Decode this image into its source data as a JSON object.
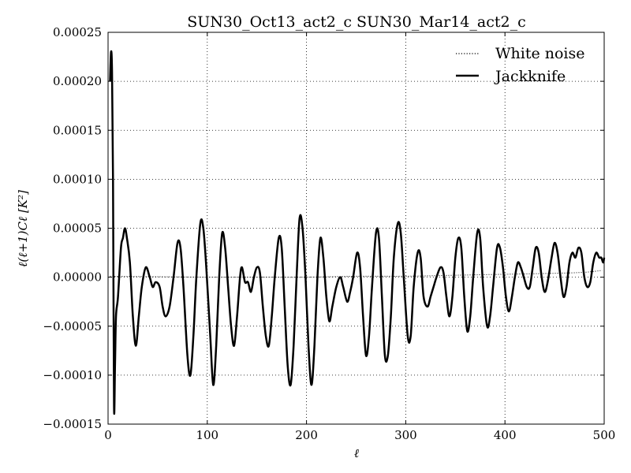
{
  "chart_data": {
    "type": "line",
    "title": "SUN30_Oct13_act2_c SUN30_Mar14_act2_c",
    "xlabel": "ℓ",
    "ylabel": "ℓ(ℓ+1)Cℓ [K²]",
    "xlim": [
      0,
      500
    ],
    "ylim": [
      -0.00015,
      0.00025
    ],
    "xticks": [
      0,
      100,
      200,
      300,
      400,
      500
    ],
    "xtick_labels": [
      "0",
      "100",
      "200",
      "300",
      "400",
      "500"
    ],
    "yticks": [
      -0.00015,
      -0.0001,
      -5e-05,
      0.0,
      5e-05,
      0.0001,
      0.00015,
      0.0002,
      0.00025
    ],
    "ytick_labels": [
      "−0.00015",
      "−0.00010",
      "−0.00005",
      "0.00000",
      "0.00005",
      "0.00010",
      "0.00015",
      "0.00020",
      "0.00025"
    ],
    "grid": true,
    "legend_position": "top-right",
    "series": [
      {
        "name": "White noise",
        "style": "dotted",
        "color": "#000000",
        "points": [
          [
            2,
            1e-06
          ],
          [
            50,
            5e-07
          ],
          [
            100,
            0.0
          ],
          [
            150,
            0.0
          ],
          [
            200,
            0.0
          ],
          [
            250,
            1e-06
          ],
          [
            300,
            1e-06
          ],
          [
            350,
            2e-06
          ],
          [
            400,
            3e-06
          ],
          [
            450,
            4e-06
          ],
          [
            480,
            5e-06
          ],
          [
            498,
            7e-06
          ]
        ]
      },
      {
        "name": "Jackknife",
        "style": "solid",
        "color": "#000000",
        "points": [
          [
            2,
            0.0002
          ],
          [
            3,
            0.00023
          ],
          [
            4,
            0.00021
          ],
          [
            5,
            0.0001
          ],
          [
            6,
            -0.00013
          ],
          [
            7,
            -9e-05
          ],
          [
            8,
            -4e-05
          ],
          [
            10,
            -2e-05
          ],
          [
            13,
            3e-05
          ],
          [
            15,
            4e-05
          ],
          [
            17,
            5e-05
          ],
          [
            19,
            4e-05
          ],
          [
            22,
            1.5e-05
          ],
          [
            25,
            -4e-05
          ],
          [
            28,
            -7e-05
          ],
          [
            31,
            -4e-05
          ],
          [
            34,
            -1e-05
          ],
          [
            38,
            1e-05
          ],
          [
            42,
            0.0
          ],
          [
            45,
            -1e-05
          ],
          [
            48,
            -5e-06
          ],
          [
            52,
            -1e-05
          ],
          [
            55,
            -3e-05
          ],
          [
            58,
            -4e-05
          ],
          [
            62,
            -3e-05
          ],
          [
            66,
            0.0
          ],
          [
            70,
            3.5e-05
          ],
          [
            73,
            3e-05
          ],
          [
            76,
            -1e-05
          ],
          [
            80,
            -8e-05
          ],
          [
            83,
            -0.0001
          ],
          [
            86,
            -6e-05
          ],
          [
            89,
            0.0
          ],
          [
            93,
            5.5e-05
          ],
          [
            96,
            5e-05
          ],
          [
            99,
            1e-05
          ],
          [
            103,
            -6e-05
          ],
          [
            106,
            -0.00011
          ],
          [
            109,
            -7e-05
          ],
          [
            112,
            0.0
          ],
          [
            115,
            4.5e-05
          ],
          [
            118,
            3e-05
          ],
          [
            121,
            -1e-05
          ],
          [
            124,
            -5e-05
          ],
          [
            127,
            -7e-05
          ],
          [
            130,
            -4e-05
          ],
          [
            133,
            0.0
          ],
          [
            135,
            1e-05
          ],
          [
            138,
            -5e-06
          ],
          [
            141,
            -5e-06
          ],
          [
            144,
            -1.5e-05
          ],
          [
            147,
            0.0
          ],
          [
            150,
            1e-05
          ],
          [
            153,
            5e-06
          ],
          [
            156,
            -3e-05
          ],
          [
            159,
            -6e-05
          ],
          [
            162,
            -7e-05
          ],
          [
            165,
            -4e-05
          ],
          [
            168,
            0.0
          ],
          [
            172,
            4e-05
          ],
          [
            175,
            3e-05
          ],
          [
            178,
            -3e-05
          ],
          [
            181,
            -9e-05
          ],
          [
            184,
            -0.00011
          ],
          [
            187,
            -7e-05
          ],
          [
            190,
            0.0
          ],
          [
            193,
            6e-05
          ],
          [
            196,
            5e-05
          ],
          [
            199,
            0.0
          ],
          [
            202,
            -7e-05
          ],
          [
            205,
            -0.00011
          ],
          [
            208,
            -7e-05
          ],
          [
            211,
            0.0
          ],
          [
            214,
            4e-05
          ],
          [
            217,
            2e-05
          ],
          [
            220,
            -2e-05
          ],
          [
            223,
            -4.5e-05
          ],
          [
            226,
            -3e-05
          ],
          [
            230,
            -1e-05
          ],
          [
            234,
            0.0
          ],
          [
            237,
            -1e-05
          ],
          [
            241,
            -2.5e-05
          ],
          [
            244,
            -1.5e-05
          ],
          [
            247,
            0.0
          ],
          [
            251,
            2.5e-05
          ],
          [
            254,
            1e-05
          ],
          [
            257,
            -4e-05
          ],
          [
            260,
            -8e-05
          ],
          [
            263,
            -6e-05
          ],
          [
            266,
            -1e-05
          ],
          [
            270,
            4.5e-05
          ],
          [
            273,
            4e-05
          ],
          [
            276,
            -2e-05
          ],
          [
            279,
            -8e-05
          ],
          [
            282,
            -8e-05
          ],
          [
            285,
            -4e-05
          ],
          [
            288,
            2e-05
          ],
          [
            292,
            5.5e-05
          ],
          [
            295,
            4.5e-05
          ],
          [
            298,
            0.0
          ],
          [
            302,
            -6e-05
          ],
          [
            305,
            -6e-05
          ],
          [
            308,
            -1e-05
          ],
          [
            312,
            2.5e-05
          ],
          [
            315,
            2e-05
          ],
          [
            318,
            -2e-05
          ],
          [
            322,
            -3e-05
          ],
          [
            325,
            -2e-05
          ],
          [
            328,
            -1e-05
          ],
          [
            331,
            0.0
          ],
          [
            335,
            1e-05
          ],
          [
            338,
            5e-06
          ],
          [
            341,
            -2e-05
          ],
          [
            344,
            -4e-05
          ],
          [
            347,
            -2e-05
          ],
          [
            350,
            2e-05
          ],
          [
            353,
            4e-05
          ],
          [
            356,
            3e-05
          ],
          [
            359,
            -2e-05
          ],
          [
            362,
            -5.5e-05
          ],
          [
            365,
            -4e-05
          ],
          [
            368,
            0.0
          ],
          [
            372,
            4.5e-05
          ],
          [
            375,
            4e-05
          ],
          [
            378,
            -1e-05
          ],
          [
            382,
            -5e-05
          ],
          [
            385,
            -4e-05
          ],
          [
            388,
            -1e-05
          ],
          [
            392,
            3e-05
          ],
          [
            395,
            3e-05
          ],
          [
            398,
            1e-05
          ],
          [
            401,
            -2e-05
          ],
          [
            404,
            -3.5e-05
          ],
          [
            407,
            -2e-05
          ],
          [
            410,
            0.0
          ],
          [
            413,
            1.5e-05
          ],
          [
            416,
            1e-05
          ],
          [
            419,
            0.0
          ],
          [
            422,
            -1e-05
          ],
          [
            425,
            -1e-05
          ],
          [
            428,
            1e-05
          ],
          [
            431,
            3e-05
          ],
          [
            434,
            2.5e-05
          ],
          [
            437,
            0.0
          ],
          [
            440,
            -1.5e-05
          ],
          [
            443,
            -5e-06
          ],
          [
            447,
            2e-05
          ],
          [
            450,
            3.5e-05
          ],
          [
            453,
            2.5e-05
          ],
          [
            456,
            0.0
          ],
          [
            459,
            -2e-05
          ],
          [
            462,
            -1e-05
          ],
          [
            465,
            1.5e-05
          ],
          [
            468,
            2.5e-05
          ],
          [
            471,
            2e-05
          ],
          [
            474,
            3e-05
          ],
          [
            477,
            2.5e-05
          ],
          [
            480,
            0.0
          ],
          [
            483,
            -1e-05
          ],
          [
            486,
            -5e-06
          ],
          [
            489,
            1.5e-05
          ],
          [
            492,
            2.5e-05
          ],
          [
            495,
            2e-05
          ],
          [
            497,
            2e-05
          ],
          [
            499,
            1.5e-05
          ],
          [
            500,
            2e-05
          ]
        ]
      }
    ]
  }
}
